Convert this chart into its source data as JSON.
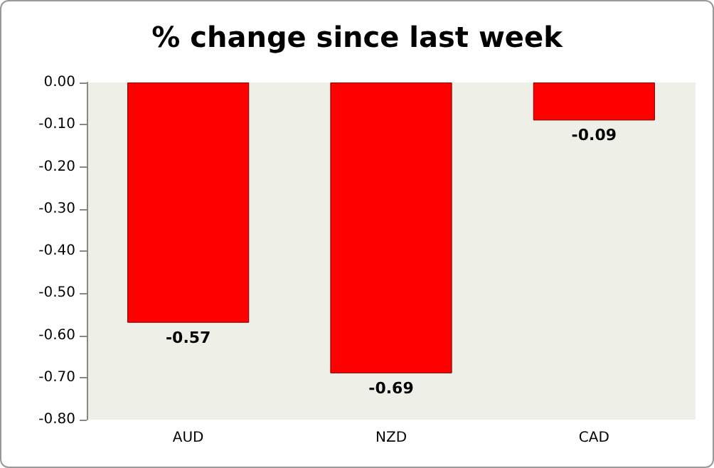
{
  "chart_data": {
    "type": "bar",
    "title": "% change since last week",
    "categories": [
      "AUD",
      "NZD",
      "CAD"
    ],
    "values": [
      -0.57,
      -0.69,
      -0.09
    ],
    "color": "#ff0000",
    "ylim": [
      -0.8,
      0
    ],
    "yticks": [
      {
        "value": 0,
        "label": "0.00"
      },
      {
        "value": -0.1,
        "label": "-0.10"
      },
      {
        "value": -0.2,
        "label": "-0.20"
      },
      {
        "value": -0.3,
        "label": "-0.30"
      },
      {
        "value": -0.4,
        "label": "-0.40"
      },
      {
        "value": -0.5,
        "label": "-0.50"
      },
      {
        "value": -0.6,
        "label": "-0.60"
      },
      {
        "value": -0.7,
        "label": "-0.70"
      },
      {
        "value": -0.8,
        "label": "-0.80"
      }
    ],
    "data_labels": true,
    "grid": false
  }
}
